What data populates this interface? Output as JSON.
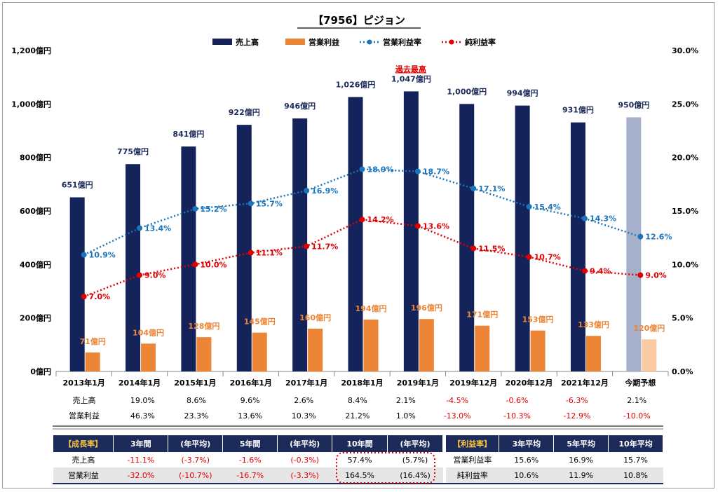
{
  "chart_data": {
    "type": "bar",
    "title": "【7956】ピジョン",
    "categories": [
      "2013年1月",
      "2014年1月",
      "2015年1月",
      "2016年1月",
      "2017年1月",
      "2018年1月",
      "2019年1月",
      "2019年12月",
      "2020年12月",
      "2021年12月",
      "今期予想"
    ],
    "series": [
      {
        "name": "売上高",
        "kind": "bar",
        "axis": "left",
        "color": "#14235a",
        "forecast_color": "#a7b0cb",
        "values": [
          651,
          775,
          841,
          922,
          946,
          1026,
          1047,
          1000,
          994,
          931,
          950
        ],
        "labels": [
          "651億円",
          "775億円",
          "841億円",
          "922億円",
          "946億円",
          "1,026億円",
          "1,047億円",
          "1,000億円",
          "994億円",
          "931億円",
          "950億円"
        ]
      },
      {
        "name": "営業利益",
        "kind": "bar",
        "axis": "left",
        "color": "#ed8537",
        "forecast_color": "#fbcca4",
        "values": [
          71,
          104,
          128,
          145,
          160,
          194,
          196,
          171,
          153,
          133,
          120
        ],
        "labels": [
          "71億円",
          "104億円",
          "128億円",
          "145億円",
          "160億円",
          "194億円",
          "196億円",
          "171億円",
          "153億円",
          "133億円",
          "120億円"
        ]
      },
      {
        "name": "営業利益率",
        "kind": "line",
        "axis": "right",
        "color": "#1b75bc",
        "values": [
          10.9,
          13.4,
          15.2,
          15.7,
          16.9,
          18.9,
          18.7,
          17.1,
          15.4,
          14.3,
          12.6
        ],
        "labels": [
          "10.9%",
          "13.4%",
          "15.2%",
          "15.7%",
          "16.9%",
          "18.9%",
          "18.7%",
          "17.1%",
          "15.4%",
          "14.3%",
          "12.6%"
        ]
      },
      {
        "name": "純利益率",
        "kind": "line",
        "axis": "right",
        "color": "#e00000",
        "values": [
          7.0,
          9.0,
          10.0,
          11.1,
          11.7,
          14.2,
          13.6,
          11.5,
          10.7,
          9.4,
          9.0
        ],
        "labels": [
          "7.0%",
          "9.0%",
          "10.0%",
          "11.1%",
          "11.7%",
          "14.2%",
          "13.6%",
          "11.5%",
          "10.7%",
          "9.4%",
          "9.0%"
        ]
      }
    ],
    "ylim": [
      0,
      1200
    ],
    "y_ticks": [
      "0億円",
      "200億円",
      "400億円",
      "600億円",
      "800億円",
      "1,000億円",
      "1,200億円"
    ],
    "y2lim": [
      0,
      30
    ],
    "y2_ticks": [
      "0.0%",
      "5.0%",
      "10.0%",
      "15.0%",
      "20.0%",
      "25.0%",
      "30.0%"
    ],
    "annotation": {
      "text": "過去最高",
      "category": "2019年1月"
    },
    "legend_position": "top",
    "grid": false
  },
  "growth_table": {
    "rows": [
      {
        "label": "売上高",
        "values": [
          "19.0%",
          "8.6%",
          "9.6%",
          "2.6%",
          "8.4%",
          "2.1%",
          "-4.5%",
          "-0.6%",
          "-6.3%",
          "2.1%"
        ]
      },
      {
        "label": "営業利益",
        "values": [
          "46.3%",
          "23.3%",
          "13.6%",
          "10.3%",
          "21.2%",
          "1.0%",
          "-13.0%",
          "-10.3%",
          "-12.9%",
          "-10.0%"
        ]
      }
    ]
  },
  "growth_summary": {
    "title": "【成長率】",
    "headers": [
      "3年間",
      "(年平均)",
      "5年間",
      "(年平均)",
      "10年間",
      "(年平均)"
    ],
    "rows": [
      {
        "label": "売上高",
        "values": [
          "-11.1%",
          "(-3.7%)",
          "-1.6%",
          "(-0.3%)",
          "57.4%",
          "(5.7%)"
        ]
      },
      {
        "label": "営業利益",
        "values": [
          "-32.0%",
          "(-10.7%)",
          "-16.7%",
          "(-3.3%)",
          "164.5%",
          "(16.4%)"
        ]
      }
    ]
  },
  "margin_summary": {
    "title": "【利益率】",
    "headers": [
      "3年平均",
      "5年平均",
      "10年平均"
    ],
    "rows": [
      {
        "label": "営業利益率",
        "values": [
          "15.6%",
          "16.9%",
          "15.7%"
        ]
      },
      {
        "label": "純利益率",
        "values": [
          "10.6%",
          "11.9%",
          "10.8%"
        ]
      }
    ]
  }
}
